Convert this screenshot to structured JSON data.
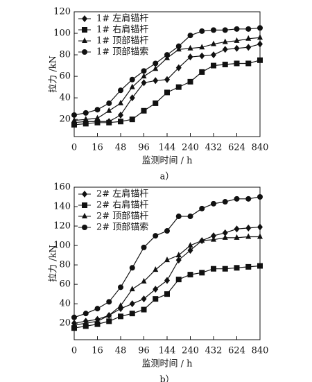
{
  "chart_data": [
    {
      "type": "line",
      "caption": "a）",
      "x_label": "监测时间 / h",
      "y_label": "拉力 /kN",
      "categories": [
        "0",
        null,
        "16",
        null,
        "48",
        null,
        "96",
        null,
        "144",
        null,
        "240",
        null,
        "432",
        null,
        "624",
        null,
        "840"
      ],
      "ylim": [
        4,
        120
      ],
      "yticks": [
        20,
        40,
        60,
        80,
        100,
        120
      ],
      "legend": "upper-left",
      "series": [
        {
          "name": "1# 左肩锚杆",
          "marker": "diamond",
          "color": "#111",
          "values": [
            17,
            18,
            18,
            18,
            24,
            40,
            54,
            56,
            57,
            68,
            78,
            79,
            80,
            85,
            86,
            87,
            90
          ]
        },
        {
          "name": "1# 右肩锚杆",
          "marker": "square",
          "color": "#111",
          "values": [
            15,
            16,
            17,
            17,
            18,
            20,
            28,
            35,
            45,
            50,
            55,
            64,
            70,
            71,
            72,
            72,
            75
          ]
        },
        {
          "name": "1# 顶部锚杆",
          "marker": "triangle",
          "color": "#111",
          "values": [
            19,
            20,
            21,
            28,
            35,
            50,
            60,
            67,
            77,
            85,
            86,
            87,
            90,
            92,
            93,
            95,
            96
          ]
        },
        {
          "name": "1# 顶部锚索",
          "marker": "circle",
          "color": "#111",
          "values": [
            24,
            26,
            29,
            35,
            47,
            57,
            65,
            72,
            80,
            88,
            98,
            102,
            103,
            103,
            104,
            104,
            105
          ]
        }
      ]
    },
    {
      "type": "line",
      "caption": "b）",
      "x_label": "监测时间 / h",
      "y_label": "拉力 /kN",
      "categories": [
        "0",
        null,
        "16",
        null,
        "48",
        null,
        "96",
        null,
        "144",
        null,
        "240",
        null,
        "432",
        null,
        "624",
        null,
        "840"
      ],
      "ylim": [
        3,
        160
      ],
      "yticks": [
        20,
        40,
        60,
        80,
        100,
        120,
        140,
        160
      ],
      "legend": "upper-left",
      "series": [
        {
          "name": "2# 左肩锚杆",
          "marker": "diamond",
          "color": "#111",
          "values": [
            20,
            22,
            24,
            28,
            35,
            40,
            45,
            55,
            64,
            85,
            95,
            105,
            110,
            113,
            117,
            118,
            119
          ]
        },
        {
          "name": "2# 右肩锚杆",
          "marker": "square",
          "color": "#111",
          "values": [
            15,
            17,
            19,
            22,
            27,
            30,
            34,
            45,
            50,
            65,
            70,
            72,
            76,
            76,
            77,
            78,
            79
          ]
        },
        {
          "name": "2# 顶部锚杆",
          "marker": "triangle",
          "color": "#111",
          "values": [
            18,
            20,
            22,
            28,
            38,
            55,
            63,
            75,
            85,
            90,
            100,
            105,
            106,
            108,
            108,
            109,
            109
          ]
        },
        {
          "name": "2# 顶部锚索",
          "marker": "circle",
          "color": "#111",
          "values": [
            26,
            30,
            35,
            42,
            57,
            77,
            98,
            110,
            115,
            130,
            130,
            138,
            143,
            145,
            148,
            148,
            150
          ]
        }
      ]
    }
  ]
}
